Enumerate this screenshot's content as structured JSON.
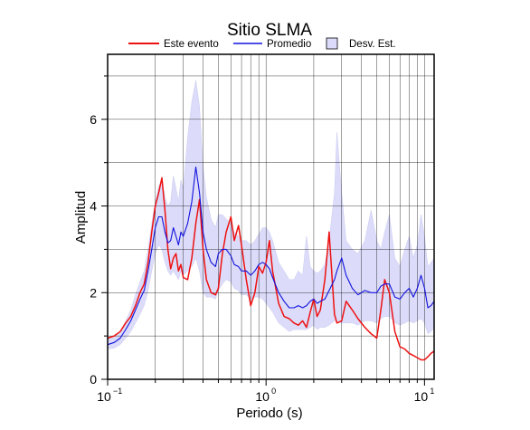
{
  "chart_data": {
    "type": "line",
    "title": "Sitio SLMA",
    "xlabel": "Periodo (s)",
    "ylabel": "Amplitud",
    "xscale": "log",
    "xlim": [
      0.1,
      11.5
    ],
    "ylim": [
      0,
      7.5
    ],
    "grid": true,
    "legend_placement": "top",
    "x_tick_labels": [
      {
        "base": "10",
        "exp": "−1",
        "value": 0.1
      },
      {
        "base": "10",
        "exp": "0",
        "value": 1
      },
      {
        "base": "10",
        "exp": "1",
        "value": 10
      }
    ],
    "y_ticks": [
      0,
      2,
      4,
      6
    ],
    "legend": {
      "este": "Este evento",
      "promedio": "Promedio",
      "desv": "Desv. Est."
    },
    "colors": {
      "este": "#ee1111",
      "promedio": "#1111dd",
      "band": "#dcdcfa",
      "band_edge": "#c8c8f0"
    },
    "series": [
      {
        "name": "Este evento",
        "x": [
          0.1,
          0.11,
          0.12,
          0.13,
          0.14,
          0.15,
          0.16,
          0.17,
          0.18,
          0.19,
          0.2,
          0.21,
          0.22,
          0.23,
          0.24,
          0.25,
          0.26,
          0.27,
          0.28,
          0.29,
          0.3,
          0.32,
          0.34,
          0.36,
          0.38,
          0.4,
          0.42,
          0.45,
          0.48,
          0.5,
          0.53,
          0.56,
          0.6,
          0.63,
          0.67,
          0.7,
          0.75,
          0.8,
          0.85,
          0.9,
          0.95,
          1.0,
          1.05,
          1.1,
          1.2,
          1.3,
          1.4,
          1.5,
          1.6,
          1.7,
          1.8,
          1.9,
          2.0,
          2.1,
          2.2,
          2.35,
          2.5,
          2.7,
          2.8,
          3.0,
          3.2,
          3.5,
          3.8,
          4.2,
          4.6,
          5.0,
          5.3,
          5.6,
          6.0,
          6.5,
          7.0,
          7.5,
          8.0,
          8.5,
          9.0,
          9.5,
          10.0,
          10.5,
          11.0,
          11.5
        ],
        "y": [
          0.95,
          1.0,
          1.1,
          1.3,
          1.45,
          1.7,
          2.0,
          2.2,
          2.7,
          3.4,
          4.0,
          4.3,
          4.65,
          3.9,
          3.0,
          2.55,
          2.8,
          2.9,
          2.5,
          2.65,
          2.35,
          2.3,
          2.8,
          3.6,
          4.15,
          3.0,
          2.3,
          2.0,
          1.95,
          2.1,
          2.9,
          3.4,
          3.75,
          3.2,
          3.55,
          3.1,
          2.3,
          1.7,
          2.0,
          2.6,
          2.45,
          2.7,
          3.2,
          2.5,
          1.75,
          1.45,
          1.4,
          1.3,
          1.25,
          1.35,
          1.2,
          1.55,
          1.85,
          1.45,
          1.6,
          2.3,
          3.4,
          1.5,
          1.3,
          1.35,
          1.8,
          1.6,
          1.4,
          1.2,
          1.05,
          0.95,
          1.6,
          2.3,
          2.0,
          1.1,
          0.75,
          0.7,
          0.6,
          0.55,
          0.5,
          0.45,
          0.45,
          0.52,
          0.6,
          0.65
        ]
      },
      {
        "name": "Promedio",
        "x": [
          0.1,
          0.11,
          0.12,
          0.13,
          0.14,
          0.15,
          0.16,
          0.17,
          0.18,
          0.19,
          0.2,
          0.21,
          0.22,
          0.23,
          0.24,
          0.25,
          0.26,
          0.27,
          0.28,
          0.29,
          0.3,
          0.32,
          0.34,
          0.36,
          0.38,
          0.4,
          0.42,
          0.45,
          0.48,
          0.5,
          0.53,
          0.56,
          0.6,
          0.63,
          0.67,
          0.7,
          0.75,
          0.8,
          0.85,
          0.9,
          0.95,
          1.0,
          1.05,
          1.1,
          1.2,
          1.3,
          1.4,
          1.5,
          1.6,
          1.7,
          1.8,
          1.9,
          2.0,
          2.1,
          2.2,
          2.35,
          2.5,
          2.7,
          2.8,
          3.0,
          3.2,
          3.5,
          3.8,
          4.2,
          4.6,
          5.0,
          5.3,
          5.6,
          6.0,
          6.5,
          7.0,
          7.5,
          8.0,
          8.5,
          9.0,
          9.5,
          10.0,
          10.5,
          11.0,
          11.5
        ],
        "y": [
          0.8,
          0.85,
          0.95,
          1.15,
          1.35,
          1.6,
          1.85,
          2.05,
          2.5,
          3.0,
          3.5,
          3.75,
          3.75,
          3.4,
          3.15,
          3.2,
          3.5,
          3.3,
          3.1,
          3.4,
          3.3,
          3.6,
          4.1,
          4.9,
          4.3,
          3.4,
          3.0,
          2.7,
          2.6,
          2.9,
          3.0,
          3.0,
          2.85,
          2.65,
          2.6,
          2.5,
          2.5,
          2.4,
          2.5,
          2.65,
          2.7,
          2.65,
          2.55,
          2.35,
          2.0,
          1.8,
          1.65,
          1.65,
          1.7,
          1.65,
          1.7,
          1.8,
          1.85,
          1.75,
          1.8,
          1.85,
          2.05,
          2.3,
          2.5,
          2.8,
          2.4,
          2.1,
          1.95,
          2.05,
          2.0,
          2.0,
          2.15,
          2.2,
          2.2,
          1.9,
          1.85,
          2.0,
          2.1,
          1.9,
          2.1,
          2.4,
          2.1,
          1.65,
          1.7,
          1.8
        ]
      }
    ],
    "band": {
      "name": "Desv. Est.",
      "x": [
        0.1,
        0.11,
        0.12,
        0.13,
        0.14,
        0.15,
        0.16,
        0.17,
        0.18,
        0.19,
        0.2,
        0.21,
        0.22,
        0.23,
        0.24,
        0.25,
        0.26,
        0.27,
        0.28,
        0.29,
        0.3,
        0.32,
        0.34,
        0.36,
        0.38,
        0.4,
        0.42,
        0.45,
        0.48,
        0.5,
        0.53,
        0.56,
        0.6,
        0.63,
        0.67,
        0.7,
        0.75,
        0.8,
        0.85,
        0.9,
        0.95,
        1.0,
        1.05,
        1.1,
        1.2,
        1.3,
        1.4,
        1.5,
        1.6,
        1.7,
        1.8,
        1.9,
        2.0,
        2.1,
        2.2,
        2.35,
        2.5,
        2.7,
        2.8,
        3.0,
        3.2,
        3.5,
        3.8,
        4.2,
        4.6,
        5.0,
        5.3,
        5.6,
        6.0,
        6.5,
        7.0,
        7.5,
        8.0,
        8.5,
        9.0,
        9.5,
        10.0,
        10.5,
        11.0,
        11.5
      ],
      "lower": [
        0.7,
        0.72,
        0.8,
        0.95,
        1.1,
        1.3,
        1.5,
        1.7,
        2.05,
        2.5,
        2.9,
        3.1,
        3.0,
        2.7,
        2.5,
        2.4,
        2.5,
        2.4,
        2.3,
        2.5,
        2.4,
        2.5,
        2.6,
        2.8,
        2.5,
        2.0,
        1.9,
        1.9,
        1.85,
        2.05,
        2.2,
        2.3,
        2.25,
        2.1,
        2.05,
        1.95,
        1.95,
        1.85,
        1.9,
        1.9,
        1.85,
        1.75,
        1.65,
        1.55,
        1.3,
        1.2,
        1.1,
        1.15,
        1.15,
        1.15,
        1.15,
        1.2,
        1.25,
        1.15,
        1.2,
        1.2,
        1.25,
        1.35,
        1.35,
        1.3,
        1.3,
        1.3,
        1.25,
        1.35,
        1.35,
        1.3,
        1.4,
        1.45,
        1.45,
        1.3,
        1.25,
        1.3,
        1.35,
        1.3,
        1.35,
        1.4,
        1.3,
        1.05,
        1.1,
        1.2
      ],
      "upper": [
        0.95,
        1.0,
        1.1,
        1.35,
        1.6,
        1.95,
        2.25,
        2.5,
        3.0,
        3.6,
        4.1,
        4.45,
        4.6,
        4.2,
        4.0,
        4.1,
        4.7,
        4.4,
        4.1,
        4.6,
        4.4,
        5.6,
        6.4,
        6.9,
        6.3,
        4.9,
        4.2,
        3.7,
        3.5,
        3.8,
        3.8,
        3.7,
        3.6,
        3.4,
        3.3,
        3.2,
        3.2,
        3.1,
        3.2,
        3.35,
        3.5,
        3.5,
        3.4,
        3.2,
        2.7,
        2.5,
        2.3,
        2.3,
        2.5,
        2.4,
        3.3,
        2.6,
        2.5,
        2.45,
        2.5,
        2.65,
        3.2,
        4.3,
        5.7,
        4.3,
        3.2,
        3.0,
        2.9,
        3.2,
        3.9,
        3.2,
        3.0,
        3.4,
        3.8,
        2.8,
        2.6,
        3.0,
        3.3,
        2.8,
        3.1,
        3.8,
        3.3,
        2.6,
        2.7,
        2.8
      ]
    }
  }
}
